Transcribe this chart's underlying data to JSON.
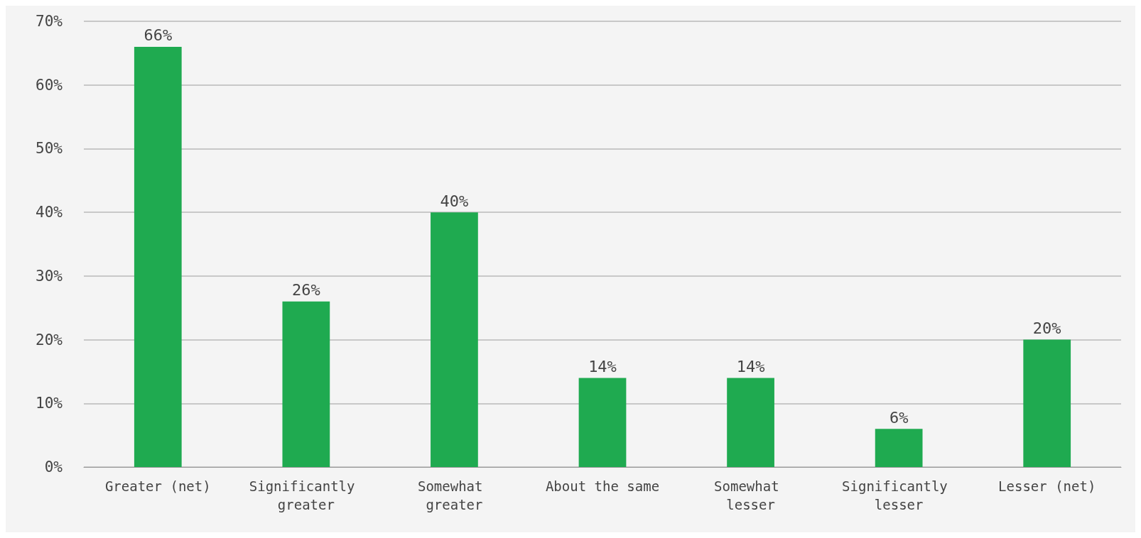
{
  "chart_data": {
    "type": "bar",
    "categories": [
      "Greater (net)",
      "Significantly greater",
      "Somewhat greater",
      "About the same",
      "Somewhat lesser",
      "Significantly lesser",
      "Lesser (net)"
    ],
    "values": [
      66,
      26,
      40,
      14,
      14,
      6,
      20
    ],
    "value_labels": [
      "66%",
      "26%",
      "40%",
      "14%",
      "14%",
      "6%",
      "20%"
    ],
    "color": "#1faa50",
    "ylim": [
      0,
      70
    ],
    "yticks": [
      {
        "value": 0,
        "label": "0%"
      },
      {
        "value": 10,
        "label": "10%"
      },
      {
        "value": 20,
        "label": "20%"
      },
      {
        "value": 30,
        "label": "30%"
      },
      {
        "value": 40,
        "label": "40%"
      },
      {
        "value": 50,
        "label": "50%"
      },
      {
        "value": 60,
        "label": "60%"
      },
      {
        "value": 70,
        "label": "70%"
      }
    ],
    "grid": "y"
  }
}
